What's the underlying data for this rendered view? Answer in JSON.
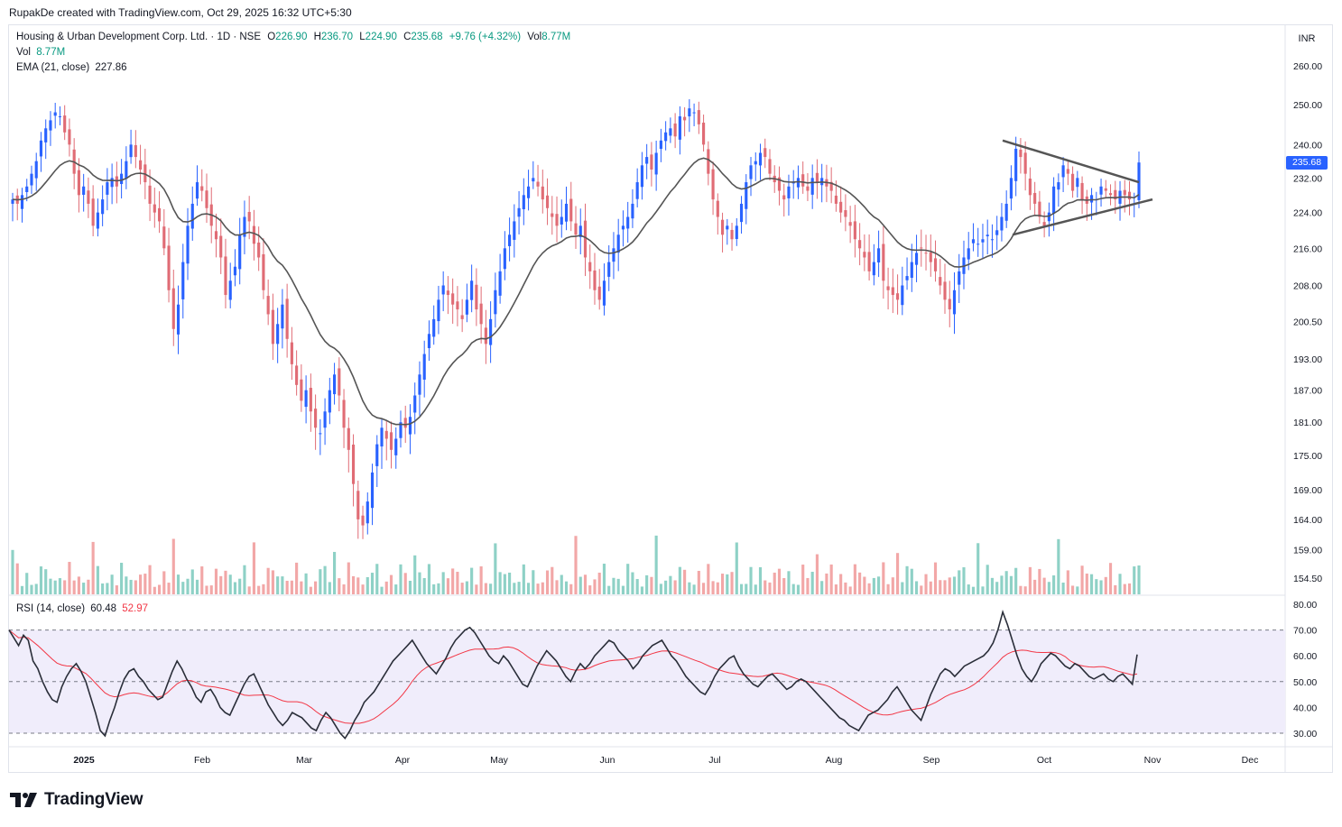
{
  "header": {
    "note": "RupakDe created with TradingView.com, Oct 29, 2025 16:32 UTC+5:30"
  },
  "legend": {
    "symbol": "Housing & Urban Development Corp. Ltd. · 1D · NSE",
    "open_label": "O",
    "open": "226.90",
    "high_label": "H",
    "high": "236.70",
    "low_label": "L",
    "low": "224.90",
    "close_label": "C",
    "close": "235.68",
    "change": "+9.76 (+4.32%)",
    "vol_label": "Vol",
    "vol": "8.77M",
    "vol_row_label": "Vol",
    "vol_row_value": "8.77M",
    "ema_label": "EMA (21, close)",
    "ema_value": "227.86",
    "rsi_label": "RSI (14, close)",
    "rsi_value": "60.48",
    "rsi_ma_value": "52.97"
  },
  "price_axis": {
    "currency": "INR",
    "last_price": "235.68"
  },
  "brand": {
    "name": "TradingView"
  },
  "colors": {
    "up": "#2962ff",
    "down": "#e06c75",
    "vol_up": "#8ed1c6",
    "vol_down": "#f2a7a7",
    "ema": "#555555",
    "rsi": "#2a2e39",
    "rsi_ma": "#f23645",
    "band": "#f0edfb",
    "last": "#2962ff"
  },
  "chart_data": [
    {
      "type": "candlestick",
      "title": "Housing & Urban Development Corp. Ltd. · 1D · NSE",
      "y_scale": "log",
      "y_ticks": [
        260.0,
        250.0,
        240.0,
        232.0,
        224.0,
        216.0,
        208.0,
        200.5,
        193.0,
        187.0,
        181.0,
        175.0,
        169.0,
        164.0,
        159.0,
        154.5
      ],
      "x_ticks": [
        "2025",
        "Feb",
        "Mar",
        "Apr",
        "May",
        "Jun",
        "Jul",
        "Aug",
        "Sep",
        "Oct",
        "Nov",
        "Dec"
      ],
      "close_series": [
        227,
        226,
        228,
        230,
        233,
        236,
        241,
        244,
        246,
        248,
        247,
        243,
        240,
        233,
        228,
        230,
        226,
        221,
        224,
        227,
        231,
        232,
        230,
        233,
        236,
        240,
        237,
        234,
        231,
        226,
        224,
        222,
        216,
        207,
        199,
        204,
        213,
        221,
        226,
        231,
        229,
        225,
        221,
        218,
        214,
        206,
        209,
        212,
        219,
        223,
        222,
        217,
        214,
        207,
        202,
        196,
        200,
        204,
        197,
        192,
        188,
        185,
        187,
        183,
        180,
        179,
        183,
        187,
        190,
        186,
        180,
        176,
        170,
        164,
        163,
        167,
        172,
        177,
        180,
        178,
        176,
        178,
        181,
        180,
        182,
        186,
        190,
        194,
        198,
        201,
        205,
        208,
        206,
        204,
        203,
        201,
        205,
        209,
        203,
        200,
        196,
        201,
        207,
        211,
        216,
        219,
        222,
        225,
        228,
        230,
        232,
        230,
        227,
        225,
        223,
        221,
        223,
        226,
        222,
        219,
        221,
        214,
        211,
        207,
        205,
        209,
        213,
        216,
        219,
        221,
        223,
        226,
        231,
        235,
        237,
        234,
        238,
        241,
        243,
        244,
        242,
        247,
        246,
        249,
        248,
        245,
        240,
        233,
        227,
        223,
        219,
        221,
        218,
        221,
        226,
        231,
        235,
        236,
        238,
        237,
        233,
        231,
        229,
        227,
        230,
        231,
        232,
        230,
        229,
        232,
        231,
        232,
        230,
        229,
        226,
        224,
        223,
        221,
        218,
        216,
        214,
        211,
        213,
        216,
        209,
        207,
        206,
        205,
        208,
        210,
        213,
        215,
        216,
        215,
        213,
        211,
        208,
        205,
        203,
        207,
        211,
        214,
        216,
        218,
        217,
        218,
        219,
        218,
        220,
        223,
        226,
        232,
        239,
        237,
        233,
        228,
        226,
        223,
        221,
        224,
        230,
        231,
        235,
        233,
        229,
        232,
        227,
        226,
        228,
        227,
        230,
        229,
        228,
        227,
        229,
        228,
        227,
        226,
        235.68
      ],
      "ema21_last": 227.86,
      "pattern": "symmetrical-triangle",
      "last": {
        "open": 226.9,
        "high": 236.7,
        "low": 224.9,
        "close": 235.68,
        "volume": "8.77M"
      }
    },
    {
      "type": "bar",
      "name": "Vol",
      "last_value": "8.77M"
    },
    {
      "type": "line",
      "name": "RSI (14, close)",
      "y_ticks": [
        80.0,
        70.0,
        60.0,
        50.0,
        40.0,
        30.0
      ],
      "band": [
        30,
        70
      ],
      "values": [
        70,
        67,
        64,
        68,
        66,
        58,
        55,
        50,
        46,
        43,
        42,
        48,
        52,
        55,
        57,
        54,
        50,
        44,
        38,
        31,
        29,
        35,
        40,
        46,
        51,
        54,
        55,
        52,
        50,
        47,
        45,
        43,
        44,
        49,
        54,
        58,
        55,
        51,
        48,
        44,
        42,
        46,
        47,
        44,
        40,
        38,
        37,
        41,
        45,
        49,
        52,
        53,
        49,
        45,
        41,
        38,
        35,
        33,
        35,
        38,
        37,
        36,
        34,
        32,
        31,
        35,
        38,
        36,
        33,
        30,
        28,
        31,
        35,
        38,
        42,
        44,
        46,
        49,
        52,
        55,
        58,
        60,
        62,
        64,
        66,
        63,
        60,
        57,
        55,
        53,
        56,
        59,
        63,
        66,
        68,
        70,
        71,
        69,
        66,
        63,
        60,
        58,
        57,
        60,
        58,
        55,
        52,
        49,
        48,
        52,
        56,
        59,
        62,
        60,
        58,
        55,
        52,
        50,
        54,
        57,
        55,
        57,
        60,
        62,
        64,
        66,
        65,
        62,
        60,
        58,
        55,
        57,
        60,
        62,
        64,
        65,
        66,
        63,
        60,
        58,
        55,
        52,
        50,
        48,
        46,
        45,
        48,
        52,
        55,
        57,
        59,
        60,
        56,
        53,
        51,
        49,
        48,
        50,
        52,
        53,
        51,
        49,
        47,
        48,
        50,
        51,
        50,
        48,
        46,
        44,
        42,
        40,
        38,
        36,
        35,
        33,
        32,
        31,
        34,
        37,
        38,
        39,
        41,
        43,
        46,
        48,
        45,
        42,
        39,
        37,
        35,
        40,
        45,
        49,
        53,
        55,
        54,
        52,
        54,
        56,
        57,
        58,
        59,
        60,
        62,
        65,
        70,
        77,
        72,
        66,
        60,
        55,
        52,
        50,
        53,
        57,
        59,
        61,
        60,
        58,
        56,
        55,
        57,
        56,
        54,
        52,
        51,
        52,
        53,
        51,
        50,
        52,
        53,
        51,
        49,
        60.48
      ],
      "ma_last": 52.97
    }
  ]
}
